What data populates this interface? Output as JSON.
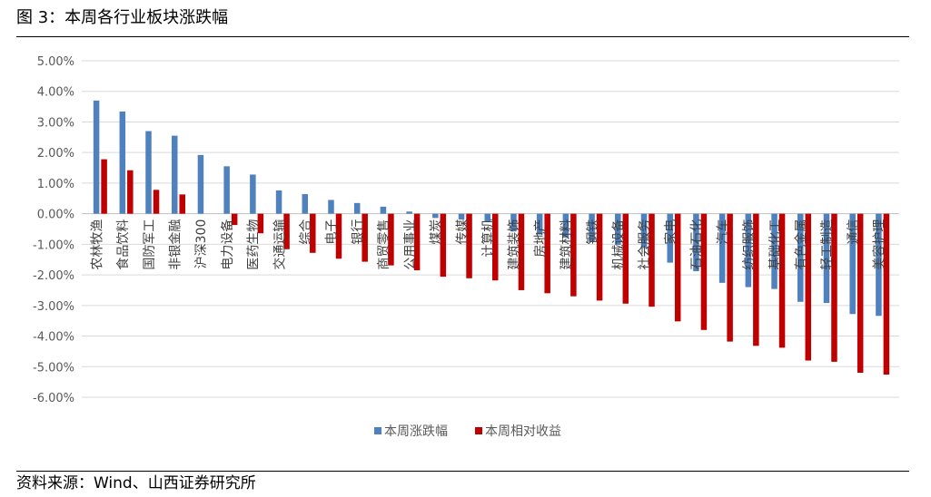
{
  "figure": {
    "title": "图 3：本周各行业板块涨跌幅",
    "source": "资料来源：Wind、山西证券研究所"
  },
  "chart_data": {
    "type": "bar",
    "title": "",
    "xlabel": "",
    "ylabel": "",
    "ylim": [
      -6,
      5
    ],
    "yticks": [
      5,
      4,
      3,
      2,
      1,
      0,
      -1,
      -2,
      -3,
      -4,
      -5,
      -6
    ],
    "ytick_labels": [
      "5.00%",
      "4.00%",
      "3.00%",
      "2.00%",
      "1.00%",
      "0.00%",
      "-1.00%",
      "-2.00%",
      "-3.00%",
      "-4.00%",
      "-5.00%",
      "-6.00%"
    ],
    "grid": true,
    "legend_position": "bottom",
    "categories": [
      "农林牧渔",
      "食品饮料",
      "国防军工",
      "非银金融",
      "沪深300",
      "电力设备",
      "医药生物",
      "交通运输",
      "综合",
      "电子",
      "银行",
      "商贸零售",
      "公用事业",
      "煤炭",
      "传媒",
      "计算机",
      "建筑装饰",
      "房地产",
      "建筑材料",
      "钢铁",
      "机械设备",
      "社会服务",
      "家电",
      "石油石化",
      "汽车",
      "纺织服饰",
      "基础化工",
      "有色金属",
      "轻工制造",
      "通信",
      "美容护理"
    ],
    "series": [
      {
        "name": "本周涨跌幅",
        "color": "#4e81bd",
        "values": [
          3.7,
          3.34,
          2.7,
          2.55,
          1.92,
          1.55,
          1.28,
          0.76,
          0.64,
          0.45,
          0.35,
          0.23,
          0.07,
          -0.14,
          -0.19,
          -0.26,
          -0.58,
          -0.68,
          -0.78,
          -0.92,
          -1.02,
          -1.12,
          -1.6,
          -1.88,
          -2.26,
          -2.4,
          -2.46,
          -2.88,
          -2.92,
          -3.28,
          -3.34
        ]
      },
      {
        "name": "本周相对收益",
        "color": "#c00000",
        "values": [
          1.78,
          1.42,
          0.78,
          0.63,
          0.0,
          -0.37,
          -0.64,
          -1.16,
          -1.28,
          -1.47,
          -1.57,
          -1.69,
          -1.85,
          -2.06,
          -2.11,
          -2.18,
          -2.5,
          -2.6,
          -2.7,
          -2.84,
          -2.94,
          -3.04,
          -3.52,
          -3.8,
          -4.18,
          -4.32,
          -4.38,
          -4.8,
          -4.84,
          -5.2,
          -5.26
        ]
      }
    ]
  }
}
